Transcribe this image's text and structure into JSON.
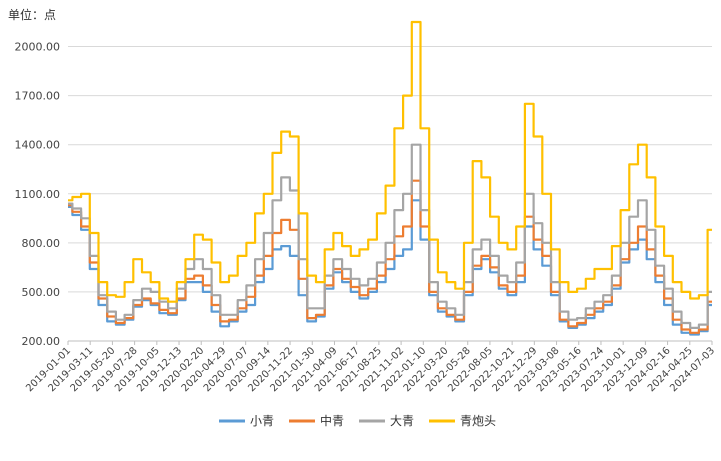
{
  "chart_data": {
    "type": "line",
    "title": "",
    "ylabel": "单位：点",
    "xlabel": "",
    "ylim": [
      200,
      2150
    ],
    "yticks": [
      200,
      500,
      800,
      1100,
      1400,
      1700,
      2000
    ],
    "ytick_labels": [
      "200.00",
      "500.00",
      "800.00",
      "1100.00",
      "1400.00",
      "1700.00",
      "2000.00"
    ],
    "x_tick_labels": [
      "2019-01-01",
      "2019-03-11",
      "2019-05-20",
      "2019-07-28",
      "2019-10-05",
      "2019-12-13",
      "2020-02-20",
      "2020-04-29",
      "2020-07-07",
      "2020-09-14",
      "2020-11-22",
      "2021-01-30",
      "2021-04-09",
      "2021-06-17",
      "2021-08-25",
      "2021-11-02",
      "2022-01-10",
      "2022-03-20",
      "2022-05-28",
      "2022-08-05",
      "2022-10-21",
      "2022-12-29",
      "2023-03-08",
      "2023-05-16",
      "2023-07-24",
      "2023-10-01",
      "2023-12-09",
      "2024-02-16",
      "2024-04-25",
      "2024-07-03"
    ],
    "grid": "horizontal",
    "legend_position": "bottom",
    "series": [
      {
        "name": "小青",
        "color": "#5b9bd5",
        "values": [
          1020,
          970,
          880,
          640,
          420,
          320,
          300,
          330,
          410,
          450,
          420,
          370,
          360,
          450,
          560,
          560,
          500,
          380,
          290,
          320,
          380,
          420,
          560,
          640,
          760,
          780,
          720,
          480,
          320,
          350,
          520,
          620,
          560,
          500,
          460,
          500,
          560,
          640,
          720,
          760,
          1060,
          820,
          480,
          380,
          350,
          320,
          480,
          640,
          700,
          620,
          520,
          480,
          560,
          900,
          760,
          660,
          480,
          320,
          280,
          300,
          340,
          380,
          420,
          520,
          680,
          760,
          820,
          700,
          560,
          420,
          300,
          250,
          240,
          260,
          420
        ]
      },
      {
        "name": "中青",
        "color": "#ed7d31",
        "values": [
          1030,
          990,
          900,
          680,
          460,
          350,
          310,
          340,
          420,
          460,
          430,
          390,
          370,
          460,
          580,
          600,
          540,
          420,
          320,
          330,
          400,
          470,
          600,
          720,
          860,
          940,
          880,
          580,
          340,
          360,
          540,
          640,
          580,
          530,
          480,
          520,
          600,
          700,
          840,
          900,
          1180,
          900,
          500,
          400,
          360,
          330,
          500,
          660,
          720,
          650,
          540,
          500,
          600,
          960,
          820,
          720,
          500,
          330,
          290,
          310,
          360,
          400,
          440,
          540,
          700,
          800,
          900,
          760,
          600,
          460,
          330,
          270,
          250,
          270,
          440
        ]
      },
      {
        "name": "大青",
        "color": "#a5a5a5",
        "values": [
          1040,
          1010,
          950,
          720,
          480,
          380,
          330,
          360,
          450,
          520,
          500,
          440,
          400,
          520,
          640,
          700,
          640,
          480,
          360,
          360,
          450,
          540,
          700,
          860,
          1060,
          1200,
          1120,
          700,
          400,
          400,
          600,
          700,
          640,
          580,
          540,
          580,
          680,
          800,
          1000,
          1100,
          1400,
          1000,
          560,
          440,
          400,
          360,
          560,
          760,
          820,
          720,
          600,
          560,
          680,
          1100,
          920,
          800,
          560,
          380,
          330,
          340,
          400,
          440,
          480,
          600,
          800,
          960,
          1060,
          880,
          660,
          520,
          380,
          310,
          280,
          300,
          500
        ]
      },
      {
        "name": "青炮头",
        "color": "#ffc000",
        "values": [
          1060,
          1080,
          1100,
          860,
          560,
          480,
          470,
          560,
          700,
          620,
          560,
          460,
          440,
          560,
          700,
          850,
          820,
          680,
          560,
          600,
          720,
          800,
          980,
          1100,
          1350,
          1480,
          1450,
          980,
          600,
          560,
          760,
          860,
          780,
          720,
          760,
          820,
          980,
          1150,
          1500,
          1700,
          2150,
          1500,
          820,
          620,
          560,
          520,
          800,
          1300,
          1200,
          960,
          800,
          760,
          900,
          1650,
          1450,
          1100,
          760,
          560,
          500,
          520,
          580,
          640,
          640,
          780,
          1000,
          1280,
          1400,
          1200,
          900,
          720,
          560,
          500,
          460,
          480,
          880
        ]
      }
    ]
  }
}
